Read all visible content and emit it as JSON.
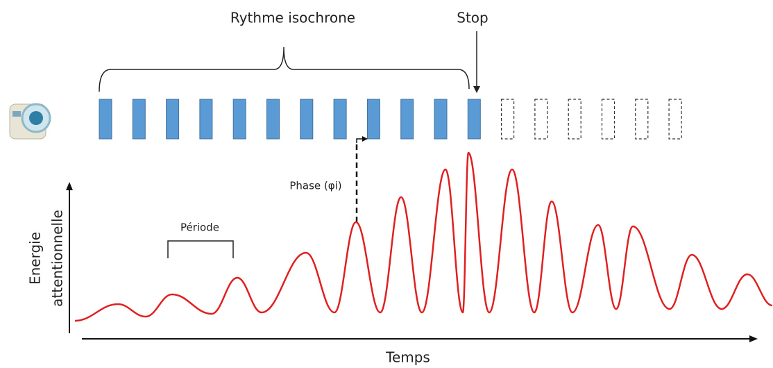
{
  "title": "Rythme isochrone",
  "stop_label": "Stop",
  "phase_label": "Phase (φi)",
  "period_label": "Période",
  "y_axis_label": [
    "Energie",
    "attentionnelle"
  ],
  "x_axis_label": "Temps"
}
